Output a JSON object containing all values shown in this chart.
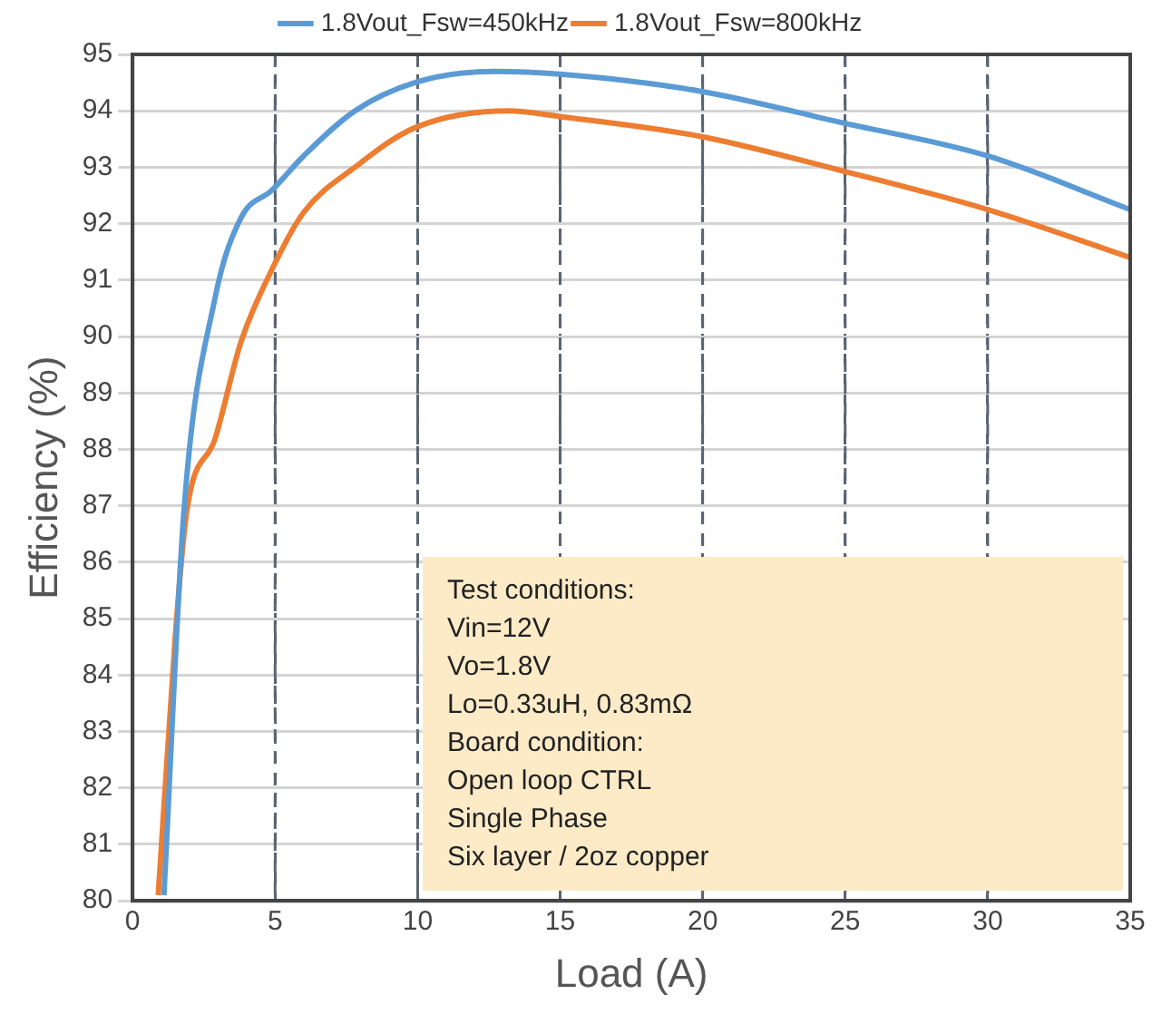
{
  "chart_data": {
    "type": "line",
    "xlabel": "Load (A)",
    "ylabel": "Efficiency (%)",
    "xlim": [
      0,
      35
    ],
    "xticks": [
      0,
      5,
      10,
      15,
      20,
      25,
      30,
      35
    ],
    "ylim": [
      80,
      95
    ],
    "yticks": [
      80,
      81,
      82,
      83,
      84,
      85,
      86,
      87,
      88,
      89,
      90,
      91,
      92,
      93,
      94,
      95
    ],
    "grid": true,
    "legend": "top",
    "marker": "none",
    "line_style": "solid",
    "series": [
      {
        "name": "1.8Vout_Fsw=450kHz",
        "color": "#5b9bd5",
        "x": [
          1.1,
          1.8,
          2.9,
          3.8,
          4.9,
          6.0,
          7.8,
          9.9,
          12.7,
          15,
          19.9,
          24.8,
          30,
          35
        ],
        "values": [
          80.1,
          86.9,
          90.7,
          92.1,
          92.6,
          93.2,
          94.0,
          94.5,
          94.7,
          94.65,
          94.35,
          93.8,
          93.2,
          92.25
        ]
      },
      {
        "name": "1.8Vout_Fsw=800kHz",
        "color": "#ed7d31",
        "x": [
          0.9,
          1.5,
          1.9,
          2.9,
          3.8,
          4.9,
          6.0,
          7.8,
          9.9,
          13.2,
          15,
          19.9,
          24.8,
          30,
          35
        ],
        "values": [
          80.1,
          84.7,
          86.9,
          88.2,
          89.9,
          91.2,
          92.2,
          93.0,
          93.7,
          94.0,
          93.9,
          93.55,
          92.95,
          92.25,
          91.4
        ]
      }
    ],
    "annotations": [
      "Test conditions:",
      "Vin=12V",
      "Vo=1.8V",
      "Lo=0.33uH, 0.83mΩ",
      "Board condition:",
      "Open loop CTRL",
      "Single Phase",
      "Six layer / 2oz copper"
    ]
  }
}
